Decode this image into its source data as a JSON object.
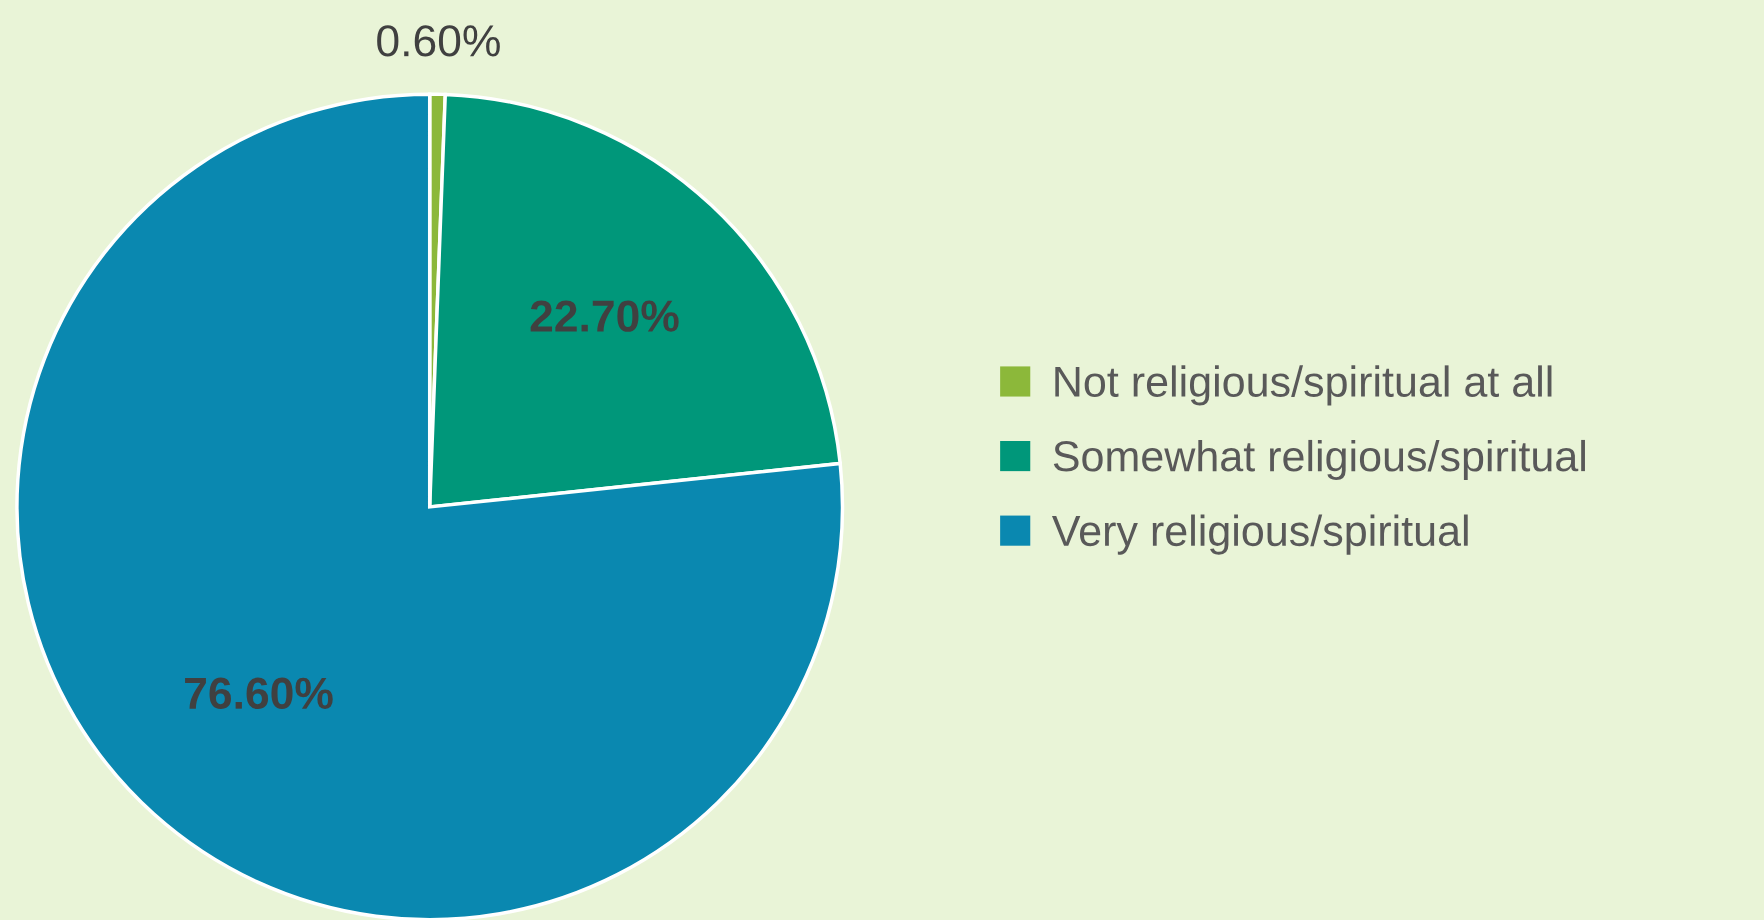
{
  "chart_data": {
    "type": "pie",
    "categories": [
      "Not religious/spiritual at all",
      "Somewhat religious/spiritual",
      "Very religious/spiritual"
    ],
    "values": [
      0.6,
      22.7,
      76.6
    ],
    "colors": [
      "#8cb83a",
      "#00977a",
      "#0a88b0"
    ],
    "value_labels": [
      "0.60%",
      "22.70%",
      "76.60%"
    ],
    "legend": "right"
  }
}
